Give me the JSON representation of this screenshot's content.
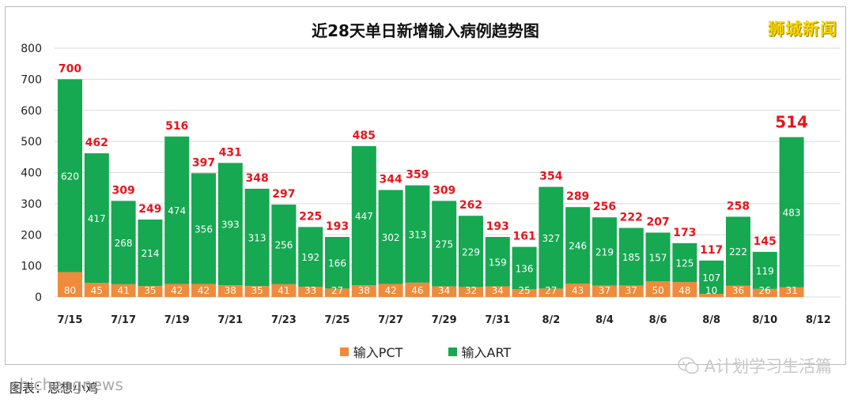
{
  "chart_data": {
    "type": "bar",
    "stacked": true,
    "title": "近28天单日新增输入病例趋势图",
    "categories": [
      "7/15",
      "7/16",
      "7/17",
      "7/18",
      "7/19",
      "7/20",
      "7/21",
      "7/22",
      "7/23",
      "7/24",
      "7/25",
      "7/26",
      "7/27",
      "7/28",
      "7/29",
      "7/30",
      "7/31",
      "8/1",
      "8/2",
      "8/3",
      "8/4",
      "8/5",
      "8/6",
      "8/7",
      "8/8",
      "8/9",
      "8/10",
      "8/11"
    ],
    "x_tick_labels": [
      "7/15",
      "7/17",
      "7/19",
      "7/21",
      "7/23",
      "7/25",
      "7/27",
      "7/29",
      "7/31",
      "8/2",
      "8/4",
      "8/6",
      "8/8",
      "8/10",
      "8/12"
    ],
    "series": [
      {
        "name": "输入PCT",
        "color": "#ef8b3b",
        "values": [
          80,
          45,
          41,
          35,
          42,
          42,
          38,
          35,
          41,
          33,
          27,
          38,
          42,
          46,
          34,
          32,
          34,
          25,
          27,
          43,
          37,
          37,
          50,
          48,
          10,
          36,
          26,
          31
        ]
      },
      {
        "name": "输入ART",
        "color": "#17a852",
        "values": [
          620,
          417,
          268,
          214,
          474,
          356,
          393,
          313,
          256,
          192,
          166,
          447,
          302,
          313,
          275,
          229,
          159,
          136,
          327,
          246,
          219,
          185,
          157,
          125,
          107,
          222,
          119,
          483
        ]
      }
    ],
    "totals": [
      700,
      462,
      309,
      249,
      516,
      397,
      431,
      348,
      297,
      225,
      193,
      485,
      344,
      359,
      309,
      262,
      193,
      161,
      354,
      289,
      256,
      222,
      207,
      173,
      117,
      258,
      145,
      514
    ],
    "total_label_color": "#e8141c",
    "highlight_last_total": true,
    "ylim": [
      0,
      800
    ],
    "yticks": [
      0,
      100,
      200,
      300,
      400,
      500,
      600,
      700,
      800
    ],
    "grid": true,
    "legend": "bottom"
  },
  "brand": "狮城新闻",
  "wechat_label": "A计划学习生活篇",
  "caption": "图表：思想小鸡",
  "source_watermark": "shichengnews"
}
